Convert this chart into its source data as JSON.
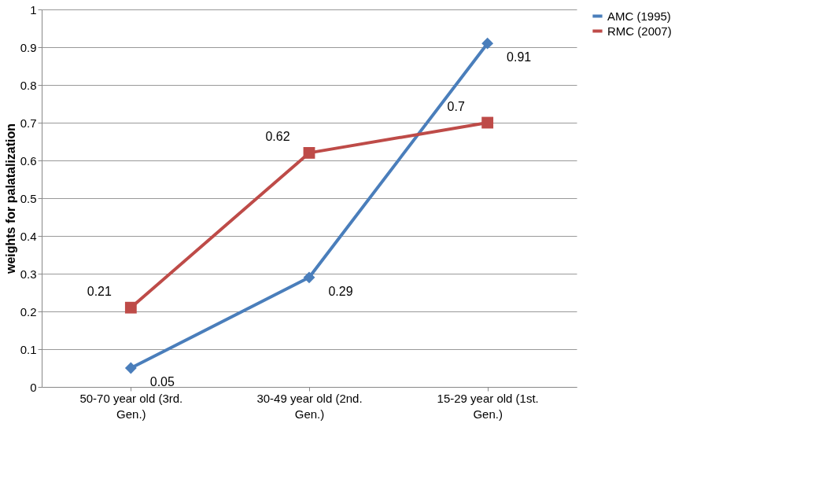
{
  "chart_data": {
    "type": "line",
    "ylabel": "weights for palatalization",
    "categories": [
      "50-70 year old (3rd. Gen.)",
      "30-49 year old (2nd. Gen.)",
      "15-29 year old (1st. Gen.)"
    ],
    "series": [
      {
        "name": "AMC (1995)",
        "color": "#4a7ebb",
        "values": [
          0.05,
          0.29,
          0.91
        ],
        "marker": "diamond"
      },
      {
        "name": "RMC (2007)",
        "color": "#be4b48",
        "values": [
          0.21,
          0.62,
          0.7
        ],
        "marker": "square"
      }
    ],
    "ylim": [
      0,
      1
    ],
    "yticks": [
      0,
      0.1,
      0.2,
      0.3,
      0.4,
      0.5,
      0.6,
      0.7,
      0.8,
      0.9,
      1
    ],
    "grid": "y",
    "legend": "right",
    "data_labels": true,
    "line_style": "solid"
  }
}
